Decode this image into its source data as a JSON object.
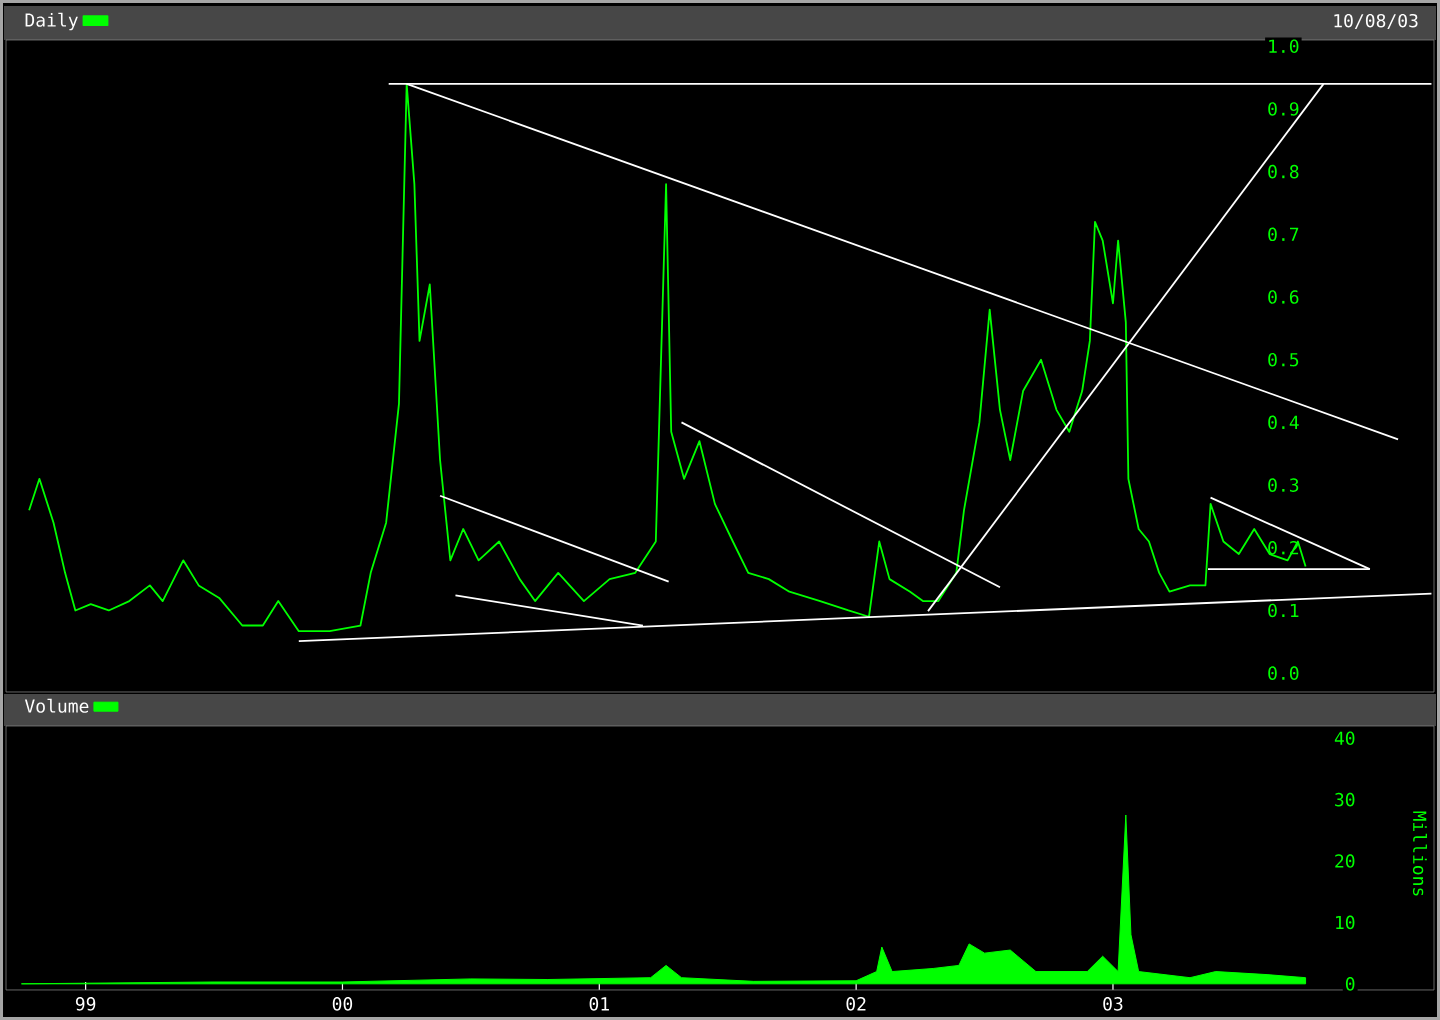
{
  "chart_data": [
    {
      "type": "line",
      "legend": "top left",
      "tick_labels": "y",
      "marker": "none",
      "line_style": "solid",
      "annotations": [
        "10/08/03"
      ],
      "xlim": [
        1998.69,
        2004.25
      ],
      "ylim": [
        -0.03,
        1.01
      ],
      "yticks": [
        {
          "value": 0,
          "label": "0.0"
        },
        0.1,
        0.2,
        0.3,
        0.4,
        0.5,
        0.6,
        0.7,
        0.8,
        0.9,
        {
          "value": 1,
          "label": "1.0"
        }
      ],
      "series": [
        {
          "name": "Daily",
          "color": "#00ff00",
          "x": [
            1998.78,
            1998.82,
            1998.875,
            1998.92,
            1998.96,
            1999.02,
            1999.09,
            1999.17,
            1999.25,
            1999.3,
            1999.38,
            1999.44,
            1999.52,
            1999.61,
            1999.69,
            1999.75,
            1999.83,
            1999.95,
            2000.07,
            2000.11,
            2000.17,
            2000.22,
            2000.25,
            2000.28,
            2000.3,
            2000.34,
            2000.38,
            2000.42,
            2000.47,
            2000.53,
            2000.61,
            2000.69,
            2000.75,
            2000.84,
            2000.94,
            2001.04,
            2001.14,
            2001.22,
            2001.26,
            2001.28,
            2001.33,
            2001.39,
            2001.45,
            2001.52,
            2001.58,
            2001.66,
            2001.74,
            2001.86,
            2001.97,
            2002.05,
            2002.09,
            2002.13,
            2002.21,
            2002.26,
            2002.32,
            2002.39,
            2002.42,
            2002.48,
            2002.52,
            2002.56,
            2002.6,
            2002.65,
            2002.72,
            2002.78,
            2002.83,
            2002.88,
            2002.91,
            2002.93,
            2002.96,
            2003.0,
            2003.02,
            2003.05,
            2003.06,
            2003.1,
            2003.14,
            2003.18,
            2003.22,
            2003.3,
            2003.36,
            2003.38,
            2003.43,
            2003.49,
            2003.55,
            2003.61,
            2003.68,
            2003.72,
            2003.75
          ],
          "values": [
            0.26,
            0.31,
            0.24,
            0.16,
            0.1,
            0.11,
            0.1,
            0.115,
            0.14,
            0.115,
            0.18,
            0.14,
            0.12,
            0.076,
            0.076,
            0.115,
            0.067,
            0.067,
            0.076,
            0.16,
            0.24,
            0.43,
            0.94,
            0.78,
            0.53,
            0.62,
            0.34,
            0.18,
            0.23,
            0.18,
            0.21,
            0.15,
            0.115,
            0.16,
            0.115,
            0.15,
            0.16,
            0.21,
            0.78,
            0.385,
            0.31,
            0.37,
            0.27,
            0.21,
            0.16,
            0.15,
            0.13,
            0.115,
            0.1,
            0.09,
            0.21,
            0.15,
            0.13,
            0.115,
            0.115,
            0.16,
            0.26,
            0.4,
            0.58,
            0.42,
            0.34,
            0.45,
            0.5,
            0.42,
            0.385,
            0.45,
            0.53,
            0.72,
            0.69,
            0.59,
            0.69,
            0.56,
            0.31,
            0.23,
            0.21,
            0.16,
            0.13,
            0.14,
            0.14,
            0.27,
            0.21,
            0.19,
            0.23,
            0.19,
            0.18,
            0.21,
            0.17
          ]
        },
        {
          "color": "#ffffff",
          "x": [
            2000.18,
            2004.24
          ],
          "values": [
            0.94,
            0.94
          ]
        },
        {
          "color": "#ffffff",
          "x": [
            2000.25,
            2004.11
          ],
          "values": [
            0.94,
            0.373
          ]
        },
        {
          "color": "#ffffff",
          "x": [
            2002.28,
            2003.82
          ],
          "values": [
            0.099,
            0.94
          ]
        },
        {
          "color": "#ffffff",
          "x": [
            1999.83,
            2004.24
          ],
          "values": [
            0.051,
            0.127
          ]
        },
        {
          "color": "#ffffff",
          "x": [
            2000.38,
            2001.27
          ],
          "values": [
            0.283,
            0.146
          ]
        },
        {
          "color": "#ffffff",
          "x": [
            2000.44,
            2001.17
          ],
          "values": [
            0.124,
            0.076
          ]
        },
        {
          "color": "#ffffff",
          "x": [
            2001.32,
            2002.56
          ],
          "values": [
            0.4,
            0.137
          ]
        },
        {
          "color": "#ffffff",
          "x": [
            2003.38,
            2004.0
          ],
          "values": [
            0.28,
            0.166
          ]
        },
        {
          "color": "#ffffff",
          "x": [
            2003.37,
            2004.0
          ],
          "values": [
            0.166,
            0.166
          ]
        }
      ]
    },
    {
      "type": "area",
      "legend": "top left",
      "ylabel": "Millions",
      "xlim": [
        1998.69,
        2004.25
      ],
      "ylim": [
        -1,
        42
      ],
      "xticks": [
        {
          "value": 1999,
          "label": "99"
        },
        {
          "value": 2000,
          "label": "00"
        },
        {
          "value": 2001,
          "label": "01"
        },
        {
          "value": 2002,
          "label": "02"
        },
        {
          "value": 2003,
          "label": "03"
        }
      ],
      "yticks": [
        0,
        10,
        20,
        30,
        40
      ],
      "series": [
        {
          "name": "Volume",
          "color": "#00ff00",
          "x": [
            1998.75,
            1999.5,
            2000.0,
            2000.5,
            2000.8,
            2001.2,
            2001.26,
            2001.32,
            2001.6,
            2002.0,
            2002.08,
            2002.1,
            2002.14,
            2002.3,
            2002.4,
            2002.44,
            2002.5,
            2002.6,
            2002.7,
            2002.9,
            2002.96,
            2003.02,
            2003.05,
            2003.07,
            2003.1,
            2003.3,
            2003.4,
            2003.6,
            2003.75
          ],
          "values": [
            0,
            0.3,
            0.3,
            0.8,
            0.7,
            1,
            3,
            1,
            0.4,
            0.5,
            2,
            6,
            2,
            2.5,
            3,
            6.5,
            5,
            5.5,
            2,
            2,
            4.5,
            2,
            27.5,
            8,
            2,
            1,
            2,
            1.5,
            1
          ]
        }
      ]
    }
  ]
}
